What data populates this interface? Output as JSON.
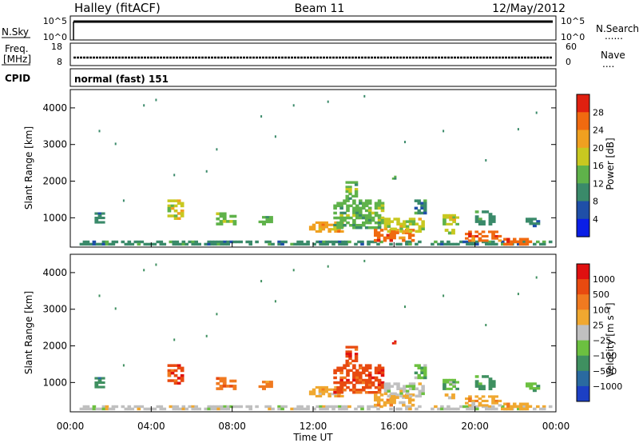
{
  "header": {
    "title_left": "Halley (fitACF)",
    "title_center": "Beam 11",
    "title_right": "12/May/2012"
  },
  "noise_panel": {
    "left_label": "N.Sky",
    "right_label": "N.Search",
    "left_ticks": [
      "10^5",
      "10^0"
    ],
    "right_ticks": [
      "10^5",
      "10^0"
    ],
    "right_legend": "......"
  },
  "freq_panel": {
    "left_label_1": "Freq.",
    "left_label_2": "[MHz]",
    "left_ticks": [
      "18",
      "8"
    ],
    "right_ticks": [
      "60",
      "0"
    ],
    "right_label": "Nave",
    "right_legend": "...."
  },
  "cpid_panel": {
    "label": "CPID",
    "text": "normal (fast) 151"
  },
  "colors": {
    "power_scale": [
      "#0a1ee6",
      "#1f4fa8",
      "#3a8a6a",
      "#5fb24a",
      "#c8c820",
      "#f0a020",
      "#f06a10",
      "#e02010"
    ],
    "velocity_scale": [
      "#1c3fc4",
      "#2a6aa0",
      "#3f9060",
      "#6cc040",
      "#c0c0c0",
      "#f0a830",
      "#f07a20",
      "#e84a10",
      "#e01010"
    ]
  },
  "chart_data": [
    {
      "type": "heatmap",
      "name": "power",
      "ylabel": "Slant Range [km]",
      "yticks": [
        "1000",
        "2000",
        "3000",
        "4000"
      ],
      "ylim": [
        200,
        4500
      ],
      "xlim": [
        0,
        24
      ],
      "colorbar_label": "Power [dB]",
      "colorbar_ticks": [
        "28",
        "24",
        "20",
        "16",
        "12",
        "8",
        "4"
      ],
      "colorbar_range": [
        0,
        30
      ],
      "blobs": [
        {
          "t0": 0.3,
          "t1": 23.8,
          "r0": 250,
          "r1": 380,
          "level": 2
        },
        {
          "t0": 1.2,
          "t1": 1.7,
          "r0": 850,
          "r1": 1150,
          "level": 2
        },
        {
          "t0": 4.8,
          "t1": 5.6,
          "r0": 950,
          "r1": 1500,
          "level": 4
        },
        {
          "t0": 7.2,
          "t1": 8.2,
          "r0": 800,
          "r1": 1150,
          "level": 3
        },
        {
          "t0": 9.3,
          "t1": 10.0,
          "r0": 800,
          "r1": 1050,
          "level": 3
        },
        {
          "t0": 11.8,
          "t1": 13.5,
          "r0": 600,
          "r1": 900,
          "level": 5
        },
        {
          "t0": 13.0,
          "t1": 15.5,
          "r0": 700,
          "r1": 1500,
          "level": 3
        },
        {
          "t0": 13.6,
          "t1": 14.2,
          "r0": 1500,
          "r1": 2000,
          "level": 3
        },
        {
          "t0": 15.0,
          "t1": 17.0,
          "r0": 350,
          "r1": 700,
          "level": 6
        },
        {
          "t0": 15.5,
          "t1": 17.5,
          "r0": 600,
          "r1": 1000,
          "level": 4
        },
        {
          "t0": 15.9,
          "t1": 16.1,
          "r0": 2050,
          "r1": 2150,
          "level": 3
        },
        {
          "t0": 17.0,
          "t1": 17.6,
          "r0": 1100,
          "r1": 1500,
          "level": 2
        },
        {
          "t0": 18.4,
          "t1": 19.2,
          "r0": 800,
          "r1": 1100,
          "level": 4
        },
        {
          "t0": 18.5,
          "t1": 19.0,
          "r0": 550,
          "r1": 700,
          "level": 4
        },
        {
          "t0": 19.5,
          "t1": 21.3,
          "r0": 350,
          "r1": 650,
          "level": 6
        },
        {
          "t0": 20.0,
          "t1": 21.0,
          "r0": 800,
          "r1": 1200,
          "level": 2
        },
        {
          "t0": 21.4,
          "t1": 22.8,
          "r0": 250,
          "r1": 450,
          "level": 6
        },
        {
          "t0": 22.5,
          "t1": 23.2,
          "r0": 750,
          "r1": 1000,
          "level": 2
        }
      ],
      "points": [
        [
          1.4,
          3400
        ],
        [
          2.2,
          3050
        ],
        [
          3.6,
          4100
        ],
        [
          4.2,
          4250
        ],
        [
          6.7,
          2300
        ],
        [
          9.4,
          3800
        ],
        [
          10.1,
          3250
        ],
        [
          11.0,
          4100
        ],
        [
          12.7,
          4200
        ],
        [
          14.5,
          4350
        ],
        [
          16.5,
          3100
        ],
        [
          18.4,
          3400
        ],
        [
          20.5,
          2600
        ],
        [
          22.1,
          3450
        ],
        [
          23.0,
          3900
        ],
        [
          7.2,
          2900
        ],
        [
          5.1,
          2200
        ],
        [
          2.6,
          1500
        ]
      ]
    },
    {
      "type": "heatmap",
      "name": "velocity",
      "ylabel": "Slant Range [km]",
      "yticks": [
        "1000",
        "2000",
        "3000",
        "4000"
      ],
      "ylim": [
        200,
        4500
      ],
      "xlim": [
        0,
        24
      ],
      "xlabel": "Time UT",
      "xticks": [
        "00:00",
        "04:00",
        "08:00",
        "12:00",
        "16:00",
        "20:00",
        "00:00"
      ],
      "colorbar_label": "Velocity [m s⁻¹]",
      "colorbar_ticks": [
        "1000",
        "500",
        "100",
        "25",
        "−25",
        "−100",
        "−500",
        "−1000"
      ],
      "colorbar_range": [
        -1000,
        1000
      ],
      "blobs": [
        {
          "t0": 0.3,
          "t1": 23.8,
          "r0": 250,
          "r1": 380,
          "level": 4
        },
        {
          "t0": 1.2,
          "t1": 1.7,
          "r0": 850,
          "r1": 1150,
          "level": 2
        },
        {
          "t0": 4.8,
          "t1": 5.6,
          "r0": 950,
          "r1": 1500,
          "level": 7
        },
        {
          "t0": 7.2,
          "t1": 8.2,
          "r0": 800,
          "r1": 1150,
          "level": 6
        },
        {
          "t0": 9.3,
          "t1": 10.0,
          "r0": 800,
          "r1": 1050,
          "level": 6
        },
        {
          "t0": 11.8,
          "t1": 13.5,
          "r0": 600,
          "r1": 900,
          "level": 5
        },
        {
          "t0": 13.0,
          "t1": 15.5,
          "r0": 700,
          "r1": 1500,
          "level": 7
        },
        {
          "t0": 13.6,
          "t1": 14.2,
          "r0": 1500,
          "r1": 2000,
          "level": 7
        },
        {
          "t0": 15.0,
          "t1": 17.0,
          "r0": 350,
          "r1": 700,
          "level": 5
        },
        {
          "t0": 15.5,
          "t1": 17.5,
          "r0": 600,
          "r1": 1000,
          "level": 4
        },
        {
          "t0": 15.9,
          "t1": 16.1,
          "r0": 2050,
          "r1": 2150,
          "level": 8
        },
        {
          "t0": 17.0,
          "t1": 17.6,
          "r0": 1100,
          "r1": 1500,
          "level": 3
        },
        {
          "t0": 18.4,
          "t1": 19.2,
          "r0": 800,
          "r1": 1100,
          "level": 3
        },
        {
          "t0": 18.5,
          "t1": 19.0,
          "r0": 550,
          "r1": 700,
          "level": 5
        },
        {
          "t0": 19.5,
          "t1": 21.3,
          "r0": 350,
          "r1": 650,
          "level": 5
        },
        {
          "t0": 20.0,
          "t1": 21.0,
          "r0": 800,
          "r1": 1200,
          "level": 2
        },
        {
          "t0": 21.4,
          "t1": 22.8,
          "r0": 250,
          "r1": 450,
          "level": 5
        },
        {
          "t0": 22.5,
          "t1": 23.2,
          "r0": 750,
          "r1": 1000,
          "level": 3
        }
      ],
      "points": [
        [
          1.4,
          3400
        ],
        [
          2.2,
          3050
        ],
        [
          3.6,
          4100
        ],
        [
          4.2,
          4250
        ],
        [
          6.7,
          2300
        ],
        [
          9.4,
          3800
        ],
        [
          10.1,
          3250
        ],
        [
          11.0,
          4100
        ],
        [
          12.7,
          4200
        ],
        [
          14.5,
          4350
        ],
        [
          16.5,
          3100
        ],
        [
          18.4,
          3400
        ],
        [
          20.5,
          2600
        ],
        [
          22.1,
          3450
        ],
        [
          23.0,
          3900
        ],
        [
          7.2,
          2900
        ],
        [
          5.1,
          2200
        ],
        [
          2.6,
          1500
        ]
      ]
    }
  ]
}
